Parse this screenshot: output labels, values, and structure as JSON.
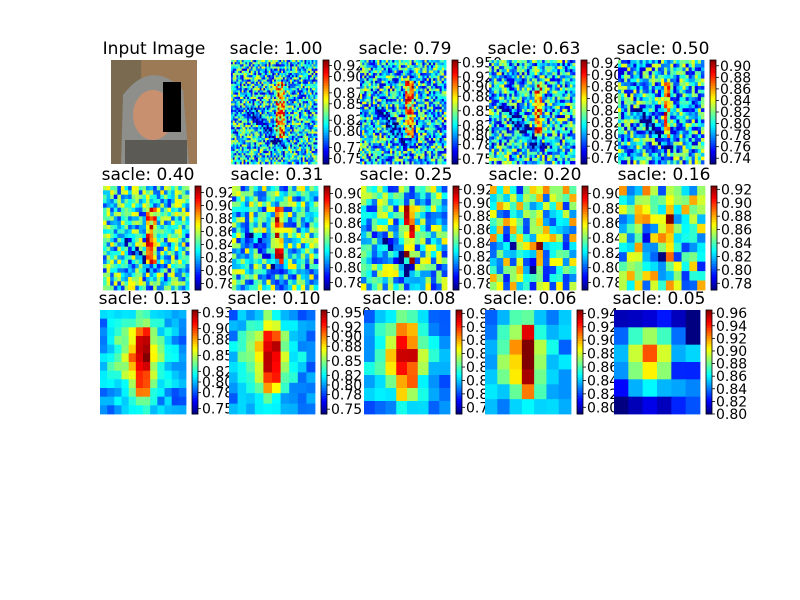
{
  "chart_data": {
    "type": "heatmap",
    "colormap": "jet",
    "panels": [
      {
        "title": "Input Image",
        "kind": "photo"
      },
      {
        "title": "sacle: 1.00",
        "kind": "heatmap",
        "grid": 48,
        "pattern": "fine",
        "colorbar_ticks": [
          "0.75",
          "0.77",
          "0.80",
          "0.82",
          "0.85",
          "0.87",
          "0.90",
          "0.92"
        ],
        "vmin": 0.74,
        "vmax": 0.93
      },
      {
        "title": "sacle: 0.79",
        "kind": "heatmap",
        "grid": 40,
        "pattern": "fine",
        "colorbar_ticks": [
          "0.75",
          "0.78",
          "0.80",
          "0.82",
          "0.85",
          "0.88",
          "0.90",
          "0.92",
          "0.950"
        ],
        "vmin": 0.74,
        "vmax": 0.955
      },
      {
        "title": "sacle: 0.63",
        "kind": "heatmap",
        "grid": 34,
        "pattern": "fine",
        "colorbar_ticks": [
          "0.76",
          "0.78",
          "0.80",
          "0.82",
          "0.84",
          "0.86",
          "0.88",
          "0.90",
          "0.92"
        ],
        "vmin": 0.75,
        "vmax": 0.925
      },
      {
        "title": "sacle: 0.50",
        "kind": "heatmap",
        "grid": 28,
        "pattern": "fine",
        "colorbar_ticks": [
          "0.74",
          "0.76",
          "0.78",
          "0.80",
          "0.82",
          "0.84",
          "0.86",
          "0.88",
          "0.90"
        ],
        "vmin": 0.73,
        "vmax": 0.91
      },
      {
        "title": "sacle: 0.40",
        "kind": "heatmap",
        "grid": 24,
        "pattern": "medium",
        "colorbar_ticks": [
          "0.78",
          "0.80",
          "0.82",
          "0.84",
          "0.86",
          "0.88",
          "0.90",
          "0.92"
        ],
        "vmin": 0.77,
        "vmax": 0.93
      },
      {
        "title": "sacle: 0.31",
        "kind": "heatmap",
        "grid": 20,
        "pattern": "medium",
        "colorbar_ticks": [
          "0.78",
          "0.80",
          "0.82",
          "0.84",
          "0.86",
          "0.88",
          "0.90"
        ],
        "vmin": 0.77,
        "vmax": 0.91
      },
      {
        "title": "sacle: 0.25",
        "kind": "heatmap",
        "grid": 16,
        "pattern": "medium",
        "colorbar_ticks": [
          "0.78",
          "0.80",
          "0.82",
          "0.84",
          "0.86",
          "0.88",
          "0.90",
          "0.92"
        ],
        "vmin": 0.77,
        "vmax": 0.925
      },
      {
        "title": "sacle: 0.20",
        "kind": "heatmap",
        "grid": 13,
        "pattern": "coarse",
        "colorbar_ticks": [
          "0.78",
          "0.80",
          "0.82",
          "0.84",
          "0.86",
          "0.88",
          "0.90"
        ],
        "vmin": 0.77,
        "vmax": 0.91
      },
      {
        "title": "sacle: 0.16",
        "kind": "heatmap",
        "grid": 11,
        "pattern": "coarse",
        "colorbar_ticks": [
          "0.78",
          "0.80",
          "0.82",
          "0.84",
          "0.86",
          "0.88",
          "0.90",
          "0.92"
        ],
        "vmin": 0.77,
        "vmax": 0.925
      },
      {
        "title": "sacle: 0.13",
        "kind": "heatmap",
        "grid": 12,
        "pattern": "smooth",
        "colorbar_ticks": [
          "0.75",
          "0.78",
          "0.80",
          "0.82",
          "0.85",
          "0.88",
          "0.90",
          "0.93"
        ],
        "vmin": 0.74,
        "vmax": 0.935
      },
      {
        "title": "sacle: 0.10",
        "kind": "heatmap",
        "grid": 10,
        "pattern": "smooth",
        "colorbar_ticks": [
          "0.75",
          "0.78",
          "0.80",
          "0.82",
          "0.85",
          "0.88",
          "0.90",
          "0.92",
          "0.950"
        ],
        "vmin": 0.74,
        "vmax": 0.955
      },
      {
        "title": "sacle: 0.08",
        "kind": "heatmap",
        "grid": 8,
        "pattern": "smooth",
        "colorbar_ticks": [
          "0.78",
          "0.80",
          "0.82",
          "0.84",
          "0.86",
          "0.88",
          "0.90",
          "0.92"
        ],
        "vmin": 0.77,
        "vmax": 0.925
      },
      {
        "title": "sacle: 0.06",
        "kind": "heatmap",
        "grid": 7,
        "pattern": "smooth",
        "colorbar_ticks": [
          "0.80",
          "0.82",
          "0.84",
          "0.86",
          "0.88",
          "0.90",
          "0.92",
          "0.94"
        ],
        "vmin": 0.79,
        "vmax": 0.945
      },
      {
        "title": "sacle: 0.05",
        "kind": "heatmap",
        "grid": 6,
        "pattern": "blob",
        "colorbar_ticks": [
          "0.80",
          "0.82",
          "0.84",
          "0.86",
          "0.88",
          "0.90",
          "0.92",
          "0.94",
          "0.96"
        ],
        "vmin": 0.8,
        "vmax": 0.965
      }
    ]
  }
}
